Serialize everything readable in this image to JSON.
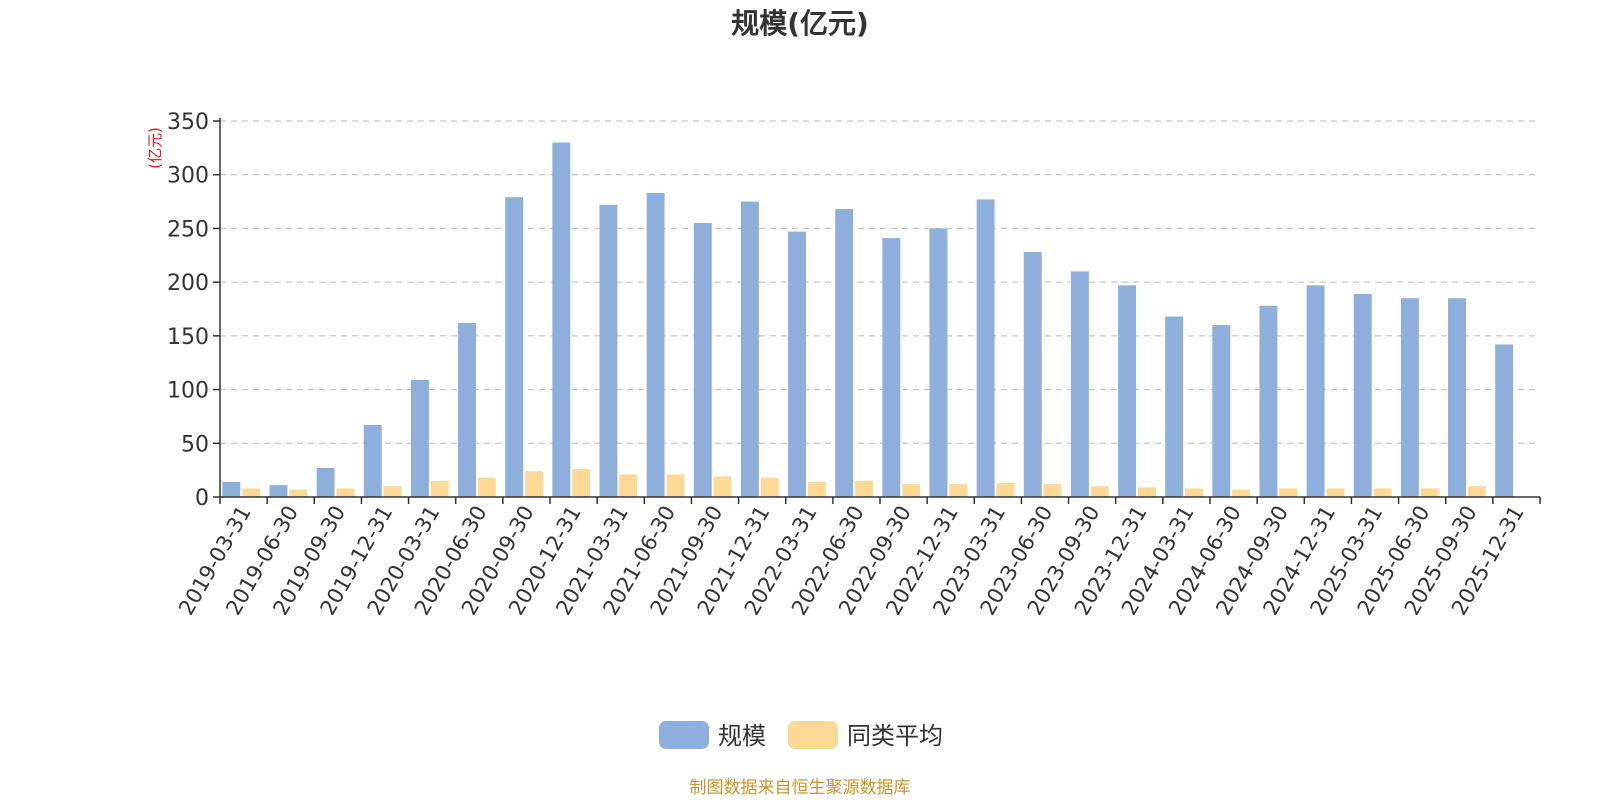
{
  "chart_data": {
    "type": "bar",
    "title": "规模(亿元)",
    "ylabel": "(亿元)",
    "ylim": [
      0,
      350
    ],
    "yticks": [
      0,
      50,
      100,
      150,
      200,
      250,
      300,
      350
    ],
    "grid": true,
    "legend_position": "bottom-center",
    "categories": [
      "2019-03-31",
      "2019-06-30",
      "2019-09-30",
      "2019-12-31",
      "2020-03-31",
      "2020-06-30",
      "2020-09-30",
      "2020-12-31",
      "2021-03-31",
      "2021-06-30",
      "2021-09-30",
      "2021-12-31",
      "2022-03-31",
      "2022-06-30",
      "2022-09-30",
      "2022-12-31",
      "2023-03-31",
      "2023-06-30",
      "2023-09-30",
      "2023-12-31",
      "2024-03-31",
      "2024-06-30",
      "2024-09-30",
      "2024-12-31",
      "2025-03-31",
      "2025-06-30",
      "2025-09-30",
      "2025-12-31"
    ],
    "series": [
      {
        "name": "规模",
        "color": "#8eaedc",
        "values": [
          14,
          11,
          27,
          67,
          109,
          162,
          279,
          330,
          272,
          283,
          255,
          275,
          247,
          268,
          241,
          250,
          277,
          228,
          210,
          197,
          168,
          160,
          178,
          197,
          189,
          185,
          185,
          142
        ]
      },
      {
        "name": "同类平均",
        "color": "#fcd995",
        "values": [
          8,
          7,
          8,
          10,
          15,
          18,
          24,
          26,
          21,
          21,
          19,
          18,
          14,
          15,
          12,
          12,
          13,
          12,
          10,
          9,
          8,
          7,
          8,
          8,
          8,
          8,
          10,
          null
        ]
      }
    ],
    "source": "制图数据来自恒生聚源数据库"
  }
}
